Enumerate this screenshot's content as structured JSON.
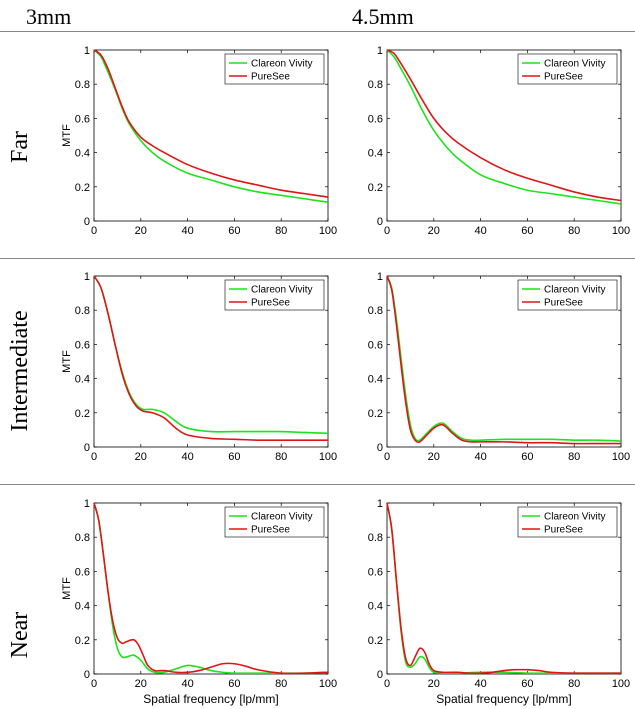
{
  "columns": [
    "3mm",
    "4.5mm"
  ],
  "rows": [
    "Far",
    "Intermediate",
    "Near"
  ],
  "legend": [
    "Clareon Vivity",
    "PureSee"
  ],
  "colors": {
    "Clareon Vivity": "#1ee21e",
    "PureSee": "#e01515",
    "axis": "#000000"
  },
  "chart_data": [
    {
      "type": "line",
      "row": "Far",
      "column": "3mm",
      "ylabel": "MTF",
      "xlabel": "",
      "xlim": [
        0,
        100
      ],
      "ylim": [
        0,
        1
      ],
      "xticks": [
        0,
        20,
        40,
        60,
        80,
        100
      ],
      "yticks": [
        0,
        0.2,
        0.4,
        0.6,
        0.8,
        1
      ],
      "series": [
        {
          "name": "Clareon Vivity",
          "x": [
            0,
            3,
            6,
            9,
            12,
            15,
            20,
            25,
            30,
            40,
            50,
            60,
            70,
            80,
            90,
            100
          ],
          "values": [
            1,
            0.96,
            0.87,
            0.77,
            0.66,
            0.57,
            0.47,
            0.4,
            0.35,
            0.28,
            0.24,
            0.2,
            0.17,
            0.15,
            0.13,
            0.11
          ]
        },
        {
          "name": "PureSee",
          "x": [
            0,
            3,
            6,
            9,
            12,
            15,
            20,
            25,
            30,
            40,
            50,
            60,
            70,
            80,
            90,
            100
          ],
          "values": [
            1,
            0.97,
            0.89,
            0.78,
            0.67,
            0.58,
            0.49,
            0.44,
            0.4,
            0.33,
            0.28,
            0.24,
            0.21,
            0.18,
            0.16,
            0.14
          ]
        }
      ]
    },
    {
      "type": "line",
      "row": "Far",
      "column": "4.5mm",
      "ylabel": "",
      "xlabel": "",
      "xlim": [
        0,
        100
      ],
      "ylim": [
        0,
        1
      ],
      "xticks": [
        0,
        20,
        40,
        60,
        80,
        100
      ],
      "yticks": [
        0,
        0.2,
        0.4,
        0.6,
        0.8,
        1
      ],
      "series": [
        {
          "name": "Clareon Vivity",
          "x": [
            0,
            3,
            6,
            10,
            15,
            20,
            25,
            30,
            40,
            50,
            60,
            70,
            80,
            90,
            100
          ],
          "values": [
            1,
            0.96,
            0.89,
            0.79,
            0.65,
            0.53,
            0.44,
            0.37,
            0.27,
            0.22,
            0.18,
            0.16,
            0.14,
            0.12,
            0.1
          ]
        },
        {
          "name": "PureSee",
          "x": [
            0,
            3,
            6,
            10,
            15,
            20,
            25,
            30,
            40,
            50,
            60,
            70,
            80,
            90,
            100
          ],
          "values": [
            1,
            0.98,
            0.92,
            0.83,
            0.71,
            0.6,
            0.52,
            0.46,
            0.37,
            0.3,
            0.25,
            0.21,
            0.17,
            0.14,
            0.12
          ]
        }
      ]
    },
    {
      "type": "line",
      "row": "Intermediate",
      "column": "3mm",
      "ylabel": "MTF",
      "xlabel": "",
      "xlim": [
        0,
        100
      ],
      "ylim": [
        0,
        1
      ],
      "xticks": [
        0,
        20,
        40,
        60,
        80,
        100
      ],
      "yticks": [
        0,
        0.2,
        0.4,
        0.6,
        0.8,
        1
      ],
      "series": [
        {
          "name": "Clareon Vivity",
          "x": [
            0,
            3,
            6,
            9,
            12,
            15,
            18,
            21,
            25,
            30,
            35,
            40,
            50,
            60,
            70,
            80,
            90,
            100
          ],
          "values": [
            1,
            0.93,
            0.78,
            0.6,
            0.44,
            0.32,
            0.25,
            0.22,
            0.22,
            0.2,
            0.15,
            0.11,
            0.09,
            0.09,
            0.09,
            0.09,
            0.085,
            0.08
          ]
        },
        {
          "name": "PureSee",
          "x": [
            0,
            3,
            6,
            9,
            12,
            15,
            18,
            21,
            25,
            30,
            35,
            40,
            50,
            60,
            70,
            80,
            90,
            100
          ],
          "values": [
            1,
            0.93,
            0.78,
            0.6,
            0.43,
            0.31,
            0.24,
            0.21,
            0.2,
            0.17,
            0.11,
            0.07,
            0.05,
            0.045,
            0.04,
            0.04,
            0.04,
            0.04
          ]
        }
      ]
    },
    {
      "type": "line",
      "row": "Intermediate",
      "column": "4.5mm",
      "ylabel": "",
      "xlabel": "",
      "xlim": [
        0,
        100
      ],
      "ylim": [
        0,
        1
      ],
      "xticks": [
        0,
        20,
        40,
        60,
        80,
        100
      ],
      "yticks": [
        0,
        0.2,
        0.4,
        0.6,
        0.8,
        1
      ],
      "series": [
        {
          "name": "Clareon Vivity",
          "x": [
            0,
            2,
            4,
            6,
            8,
            10,
            12,
            14,
            17,
            20,
            23,
            25,
            28,
            32,
            36,
            40,
            50,
            60,
            70,
            80,
            90,
            100
          ],
          "values": [
            1,
            0.93,
            0.75,
            0.52,
            0.3,
            0.13,
            0.05,
            0.04,
            0.08,
            0.12,
            0.14,
            0.13,
            0.09,
            0.05,
            0.04,
            0.04,
            0.045,
            0.045,
            0.045,
            0.04,
            0.04,
            0.035
          ]
        },
        {
          "name": "PureSee",
          "x": [
            0,
            2,
            4,
            6,
            8,
            10,
            12,
            14,
            17,
            20,
            23,
            25,
            28,
            32,
            36,
            40,
            50,
            60,
            70,
            80,
            90,
            100
          ],
          "values": [
            1,
            0.92,
            0.72,
            0.48,
            0.26,
            0.1,
            0.04,
            0.03,
            0.07,
            0.11,
            0.13,
            0.12,
            0.08,
            0.04,
            0.03,
            0.03,
            0.03,
            0.025,
            0.025,
            0.02,
            0.02,
            0.02
          ]
        }
      ]
    },
    {
      "type": "line",
      "row": "Near",
      "column": "3mm",
      "ylabel": "MTF",
      "xlabel": "Spatial frequency [lp/mm]",
      "xlim": [
        0,
        100
      ],
      "ylim": [
        0,
        1
      ],
      "xticks": [
        0,
        20,
        40,
        60,
        80,
        100
      ],
      "yticks": [
        0,
        0.2,
        0.4,
        0.6,
        0.8,
        1
      ],
      "series": [
        {
          "name": "Clareon Vivity",
          "x": [
            0,
            2,
            4,
            6,
            8,
            10,
            12,
            14,
            17,
            20,
            23,
            26,
            30,
            35,
            40,
            45,
            50,
            55,
            60,
            70,
            80,
            90,
            100
          ],
          "values": [
            1,
            0.9,
            0.7,
            0.48,
            0.28,
            0.15,
            0.1,
            0.1,
            0.11,
            0.08,
            0.03,
            0.01,
            0.01,
            0.03,
            0.05,
            0.04,
            0.02,
            0.01,
            0.005,
            0.005,
            0.005,
            0.005,
            0.01
          ]
        },
        {
          "name": "PureSee",
          "x": [
            0,
            2,
            4,
            6,
            8,
            10,
            12,
            14,
            17,
            19,
            21,
            23,
            26,
            30,
            35,
            40,
            45,
            50,
            55,
            60,
            65,
            70,
            80,
            90,
            100
          ],
          "values": [
            1,
            0.9,
            0.7,
            0.48,
            0.31,
            0.21,
            0.18,
            0.19,
            0.2,
            0.17,
            0.11,
            0.05,
            0.02,
            0.02,
            0.01,
            0.01,
            0.02,
            0.04,
            0.06,
            0.06,
            0.045,
            0.025,
            0.005,
            0.005,
            0.01
          ]
        }
      ]
    },
    {
      "type": "line",
      "row": "Near",
      "column": "4.5mm",
      "ylabel": "",
      "xlabel": "Spatial frequency [lp/mm]",
      "xlim": [
        0,
        100
      ],
      "ylim": [
        0,
        1
      ],
      "xticks": [
        0,
        20,
        40,
        60,
        80,
        100
      ],
      "yticks": [
        0,
        0.2,
        0.4,
        0.6,
        0.8,
        1
      ],
      "series": [
        {
          "name": "Clareon Vivity",
          "x": [
            0,
            2,
            4,
            6,
            8,
            10,
            12,
            14,
            16,
            18,
            20,
            24,
            30,
            40,
            50,
            60,
            70,
            80,
            90,
            100
          ],
          "values": [
            1,
            0.85,
            0.55,
            0.25,
            0.07,
            0.04,
            0.06,
            0.1,
            0.09,
            0.04,
            0.01,
            0.005,
            0.005,
            0.01,
            0.01,
            0.005,
            0.005,
            0.005,
            0.005,
            0.005
          ]
        },
        {
          "name": "PureSee",
          "x": [
            0,
            2,
            4,
            6,
            8,
            10,
            12,
            14,
            16,
            18,
            20,
            24,
            30,
            35,
            40,
            45,
            50,
            55,
            60,
            65,
            70,
            80,
            90,
            100
          ],
          "values": [
            1,
            0.85,
            0.55,
            0.27,
            0.09,
            0.05,
            0.1,
            0.15,
            0.13,
            0.06,
            0.02,
            0.01,
            0.01,
            0.005,
            0.005,
            0.01,
            0.02,
            0.025,
            0.025,
            0.02,
            0.01,
            0.005,
            0.005,
            0.005
          ]
        }
      ]
    }
  ]
}
